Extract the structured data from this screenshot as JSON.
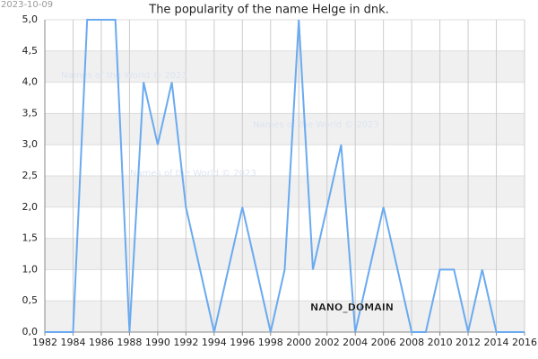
{
  "chart_data": {
    "type": "line",
    "title": "The popularity of the name Helge in dnk.",
    "x": [
      1982,
      1983,
      1984,
      1985,
      1986,
      1987,
      1988,
      1989,
      1990,
      1991,
      1992,
      1993,
      1994,
      1995,
      1996,
      1997,
      1998,
      1999,
      2000,
      2001,
      2002,
      2003,
      2004,
      2005,
      2006,
      2007,
      2008,
      2009,
      2010,
      2011,
      2012,
      2013,
      2014,
      2015,
      2016
    ],
    "values": [
      0,
      0,
      0,
      5,
      5,
      5,
      0,
      4,
      3,
      4,
      2,
      1,
      0,
      1,
      2,
      1,
      0,
      1,
      5,
      1,
      2,
      3,
      0,
      1,
      2,
      1,
      0,
      0,
      1,
      1,
      0,
      1,
      0,
      0,
      0
    ],
    "color": "#6aaaf0",
    "xlim": [
      1982,
      2016
    ],
    "xticks": [
      1982,
      1984,
      1986,
      1988,
      1990,
      1992,
      1994,
      1996,
      1998,
      2000,
      2002,
      2004,
      2006,
      2008,
      2010,
      2012,
      2014,
      2016
    ],
    "ylim": [
      0,
      5
    ],
    "yticks": [
      {
        "value": 0,
        "label": "0,0"
      },
      {
        "value": 0.5,
        "label": "0,5"
      },
      {
        "value": 1,
        "label": "1,0"
      },
      {
        "value": 1.5,
        "label": "1,5"
      },
      {
        "value": 2,
        "label": "2,0"
      },
      {
        "value": 2.5,
        "label": "2,5"
      },
      {
        "value": 3,
        "label": "3,0"
      },
      {
        "value": 3.5,
        "label": "3,5"
      },
      {
        "value": 4,
        "label": "4,0"
      },
      {
        "value": 4.5,
        "label": "4,5"
      },
      {
        "value": 5,
        "label": "5,0"
      }
    ],
    "grid": true,
    "annotations": [
      "2023-10-09",
      "Names of the World © 2023",
      "Names of the World © 2023",
      "Names of the World © 2023",
      "NANO_DOMAIN"
    ]
  }
}
